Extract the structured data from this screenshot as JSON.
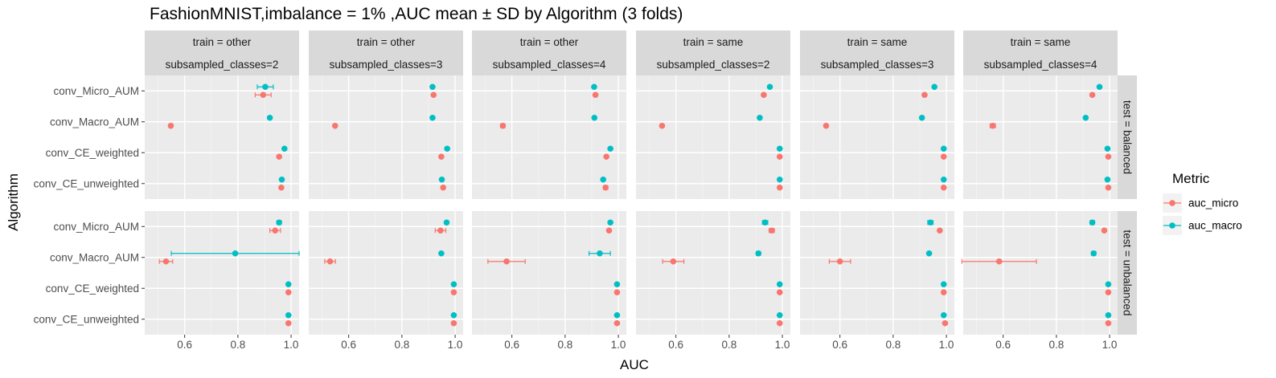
{
  "chart_data": {
    "type": "scatter",
    "title": "FashionMNIST,imbalance = 1% ,AUC mean ± SD by Algorithm (3 folds)",
    "xlabel": "AUC",
    "ylabel": "Algorithm",
    "xlim": [
      0.45,
      1.03
    ],
    "x_ticks": [
      "0.6",
      "0.8",
      "1.0"
    ],
    "x_tick_values": [
      0.6,
      0.8,
      1.0
    ],
    "categories": [
      "conv_Micro_AUM",
      "conv_Macro_AUM",
      "conv_CE_weighted",
      "conv_CE_unweighted"
    ],
    "grid": true,
    "legend_position": "right",
    "columns": [
      {
        "train": "train = other",
        "classes": "subsampled_classes=2"
      },
      {
        "train": "train = other",
        "classes": "subsampled_classes=3"
      },
      {
        "train": "train = other",
        "classes": "subsampled_classes=4"
      },
      {
        "train": "train = same",
        "classes": "subsampled_classes=2"
      },
      {
        "train": "train = same",
        "classes": "subsampled_classes=3"
      },
      {
        "train": "train = same",
        "classes": "subsampled_classes=4"
      }
    ],
    "rows": [
      "test = balanced",
      "test = unbalanced"
    ],
    "legend": {
      "title": "Metric",
      "items": [
        {
          "label": "auc_micro",
          "color": "#F8766D"
        },
        {
          "label": "auc_macro",
          "color": "#00BFC4"
        }
      ]
    },
    "panels": [
      [
        {
          "auc_micro": [
            [
              0.895,
              0.03
            ],
            [
              0.548,
              0.006
            ],
            [
              0.955,
              0.003
            ],
            [
              0.963,
              0.003
            ]
          ],
          "auc_macro": [
            [
              0.903,
              0.03
            ],
            [
              0.92,
              0.003
            ],
            [
              0.975,
              0.003
            ],
            [
              0.965,
              0.003
            ]
          ]
        },
        {
          "auc_micro": [
            [
              0.919,
              0.003
            ],
            [
              0.549,
              0.003
            ],
            [
              0.948,
              0.003
            ],
            [
              0.955,
              0.003
            ]
          ],
          "auc_macro": [
            [
              0.915,
              0.003
            ],
            [
              0.915,
              0.003
            ],
            [
              0.97,
              0.003
            ],
            [
              0.95,
              0.005
            ]
          ]
        },
        {
          "auc_micro": [
            [
              0.914,
              0.003
            ],
            [
              0.566,
              0.008
            ],
            [
              0.955,
              0.003
            ],
            [
              0.952,
              0.008
            ]
          ],
          "auc_macro": [
            [
              0.909,
              0.003
            ],
            [
              0.91,
              0.003
            ],
            [
              0.97,
              0.003
            ],
            [
              0.943,
              0.003
            ]
          ]
        },
        {
          "auc_micro": [
            [
              0.93,
              0.003
            ],
            [
              0.548,
              0.004
            ],
            [
              0.99,
              0.002
            ],
            [
              0.99,
              0.002
            ]
          ],
          "auc_macro": [
            [
              0.953,
              0.003
            ],
            [
              0.915,
              0.004
            ],
            [
              0.99,
              0.002
            ],
            [
              0.99,
              0.002
            ]
          ]
        },
        {
          "auc_micro": [
            [
              0.918,
              0.003
            ],
            [
              0.548,
              0.003
            ],
            [
              0.99,
              0.002
            ],
            [
              0.99,
              0.002
            ]
          ],
          "auc_macro": [
            [
              0.955,
              0.003
            ],
            [
              0.908,
              0.006
            ],
            [
              0.99,
              0.002
            ],
            [
              0.99,
              0.002
            ]
          ]
        },
        {
          "auc_micro": [
            [
              0.935,
              0.003
            ],
            [
              0.561,
              0.01
            ],
            [
              0.995,
              0.002
            ],
            [
              0.995,
              0.002
            ]
          ],
          "auc_macro": [
            [
              0.962,
              0.003
            ],
            [
              0.91,
              0.003
            ],
            [
              0.992,
              0.002
            ],
            [
              0.992,
              0.002
            ]
          ]
        }
      ],
      [
        {
          "auc_micro": [
            [
              0.94,
              0.02
            ],
            [
              0.53,
              0.025
            ],
            [
              0.99,
              0.002
            ],
            [
              0.99,
              0.002
            ]
          ],
          "auc_macro": [
            [
              0.955,
              0.008
            ],
            [
              0.79,
              0.24
            ],
            [
              0.99,
              0.002
            ],
            [
              0.99,
              0.002
            ]
          ]
        },
        {
          "auc_micro": [
            [
              0.945,
              0.02
            ],
            [
              0.53,
              0.02
            ],
            [
              0.995,
              0.002
            ],
            [
              0.995,
              0.002
            ]
          ],
          "auc_macro": [
            [
              0.968,
              0.006
            ],
            [
              0.948,
              0.002
            ],
            [
              0.995,
              0.002
            ],
            [
              0.995,
              0.002
            ]
          ]
        },
        {
          "auc_micro": [
            [
              0.965,
              0.004
            ],
            [
              0.58,
              0.07
            ],
            [
              0.995,
              0.002
            ],
            [
              0.995,
              0.002
            ]
          ],
          "auc_macro": [
            [
              0.97,
              0.004
            ],
            [
              0.93,
              0.04
            ],
            [
              0.995,
              0.002
            ],
            [
              0.995,
              0.002
            ]
          ]
        },
        {
          "auc_micro": [
            [
              0.96,
              0.01
            ],
            [
              0.59,
              0.04
            ],
            [
              0.99,
              0.002
            ],
            [
              0.99,
              0.002
            ]
          ],
          "auc_macro": [
            [
              0.935,
              0.01
            ],
            [
              0.91,
              0.008
            ],
            [
              0.99,
              0.002
            ],
            [
              0.99,
              0.002
            ]
          ]
        },
        {
          "auc_micro": [
            [
              0.975,
              0.003
            ],
            [
              0.6,
              0.04
            ],
            [
              0.99,
              0.002
            ],
            [
              0.995,
              0.002
            ]
          ],
          "auc_macro": [
            [
              0.94,
              0.01
            ],
            [
              0.935,
              0.004
            ],
            [
              0.99,
              0.002
            ],
            [
              0.99,
              0.002
            ]
          ]
        },
        {
          "auc_micro": [
            [
              0.98,
              0.003
            ],
            [
              0.585,
              0.14
            ],
            [
              0.995,
              0.002
            ],
            [
              0.995,
              0.002
            ]
          ],
          "auc_macro": [
            [
              0.935,
              0.008
            ],
            [
              0.94,
              0.008
            ],
            [
              0.995,
              0.002
            ],
            [
              0.995,
              0.002
            ]
          ]
        }
      ]
    ]
  }
}
